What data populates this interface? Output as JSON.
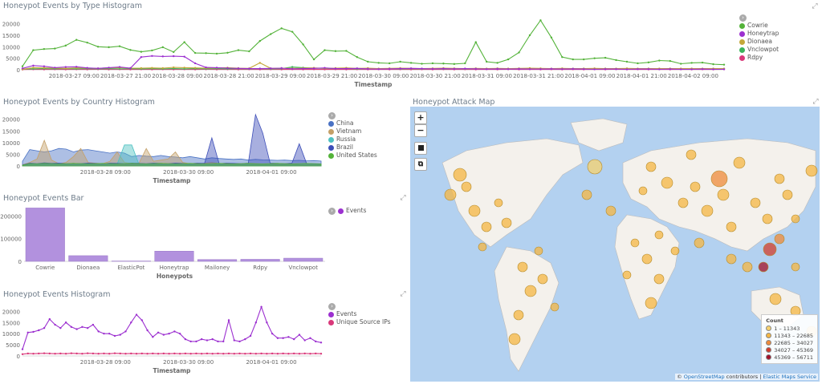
{
  "panels": {
    "type_hist": {
      "title": "Honeypot Events by Type Histogram",
      "xlabel": "Timestamp",
      "legend": [
        {
          "name": "Cowrie",
          "color": "#54b33a"
        },
        {
          "name": "Honeytrap",
          "color": "#9c30d0"
        },
        {
          "name": "Dionaea",
          "color": "#c4a83a"
        },
        {
          "name": "Vnclowpot",
          "color": "#3bb55b"
        },
        {
          "name": "Rdpy",
          "color": "#d9397a"
        }
      ]
    },
    "country_hist": {
      "title": "Honeypot Events by Country Histogram",
      "xlabel": "Timestamp",
      "legend": [
        {
          "name": "China",
          "color": "#4a72c4"
        },
        {
          "name": "Vietnam",
          "color": "#c4a068"
        },
        {
          "name": "Russia",
          "color": "#4ec2c2"
        },
        {
          "name": "Brazil",
          "color": "#3d4eb8"
        },
        {
          "name": "United States",
          "color": "#54b33a"
        }
      ]
    },
    "events_bar": {
      "title": "Honeypot Events Bar",
      "xlabel": "Honeypots",
      "legend": [
        {
          "name": "Events",
          "color": "#9c30d0"
        }
      ]
    },
    "events_hist": {
      "title": "Honeypot Events Histogram",
      "xlabel": "Timestamp",
      "legend": [
        {
          "name": "Events",
          "color": "#9c30d0"
        },
        {
          "name": "Unique Source IPs",
          "color": "#d9397a"
        }
      ]
    },
    "attack_map": {
      "title": "Honeypot Attack Map",
      "zoom_in": "+",
      "zoom_out": "−",
      "legend_title": "Count",
      "legend": [
        {
          "label": "1 – 11343",
          "color": "#f7d16e"
        },
        {
          "label": "11343 – 22685",
          "color": "#f5b643"
        },
        {
          "label": "22685 – 34027",
          "color": "#ef8a3a"
        },
        {
          "label": "34027 – 45369",
          "color": "#d23c2c"
        },
        {
          "label": "45369 – 56711",
          "color": "#a3122a"
        }
      ],
      "attribution_prefix": "© ",
      "attribution_osm": "OpenStreetMap",
      "attribution_mid": " contributors | ",
      "attribution_ems": "Elastic Maps Service"
    }
  },
  "chart_data": [
    {
      "type": "line",
      "title": "Honeypot Events by Type Histogram",
      "xlabel": "Timestamp",
      "ylabel": "",
      "y_ticks": [
        "20000",
        "15000",
        "10000",
        "5000",
        "0"
      ],
      "ylim": [
        0,
        23000
      ],
      "x_ticks": [
        "2018-03-27 09:00",
        "2018-03-27 21:00",
        "2018-03-28 09:00",
        "2018-03-28 21:00",
        "2018-03-29 09:00",
        "2018-03-29 21:00",
        "2018-03-30 09:00",
        "2018-03-30 21:00",
        "2018-03-31 09:00",
        "2018-03-31 21:00",
        "2018-04-01 09:00",
        "2018-04-01 21:00",
        "2018-04-02 09:00"
      ],
      "series": [
        {
          "name": "Cowrie",
          "values": [
            1500,
            8500,
            9000,
            9200,
            10500,
            13000,
            11800,
            10000,
            9800,
            10200,
            8600,
            7800,
            8400,
            9800,
            7700,
            12000,
            7300,
            7200,
            7000,
            7400,
            8500,
            8000,
            12500,
            15500,
            18000,
            16500,
            11000,
            4500,
            8500,
            8100,
            8200,
            5500,
            3500,
            3000,
            2800,
            3500,
            3000,
            2600,
            2800,
            2700,
            2500,
            2800,
            12000,
            3500,
            3000,
            4500,
            7500,
            15000,
            21500,
            14000,
            5500,
            4500,
            4500,
            5000,
            5200,
            4200,
            3500,
            2800,
            3200,
            4000,
            3800,
            2600,
            3000,
            3100,
            2400,
            2200
          ]
        },
        {
          "name": "Honeytrap",
          "values": [
            600,
            1800,
            1500,
            900,
            1200,
            1300,
            800,
            600,
            900,
            1200,
            700,
            5500,
            6000,
            5800,
            5900,
            5700,
            2800,
            1000,
            900,
            700,
            600,
            500,
            500,
            600,
            700,
            400,
            500,
            600,
            800,
            500,
            500,
            600,
            400,
            300,
            400,
            500,
            600,
            500,
            400,
            500,
            400,
            500,
            400,
            300,
            400,
            300,
            400,
            300,
            300,
            400,
            300,
            400,
            300,
            200,
            300,
            300,
            200,
            300,
            300,
            200,
            300,
            200,
            200,
            300,
            200,
            200
          ]
        },
        {
          "name": "Dionaea",
          "values": [
            200,
            900,
            800,
            700,
            600,
            800,
            700,
            600,
            800,
            900,
            700,
            700,
            800,
            700,
            1000,
            900,
            800,
            700,
            800,
            900,
            700,
            600,
            3000,
            600,
            700,
            600,
            700,
            800,
            600,
            700,
            800,
            600,
            700,
            500,
            600,
            700,
            600,
            500,
            600,
            700,
            600,
            500,
            600,
            500,
            600,
            500,
            600,
            700,
            600,
            500,
            600,
            500,
            500,
            600,
            500,
            500,
            600,
            500,
            500,
            500,
            500,
            500,
            500,
            500,
            500,
            500
          ]
        },
        {
          "name": "Vnclowpot",
          "values": [
            300,
            400,
            500,
            400,
            500,
            400,
            500,
            400,
            500,
            400,
            500,
            400,
            500,
            400,
            500,
            400,
            500,
            400,
            500,
            400,
            500,
            400,
            500,
            400,
            500,
            1200,
            900,
            700,
            600,
            500,
            600,
            400,
            500,
            400,
            500,
            400,
            500,
            400,
            500,
            400,
            500,
            400,
            500,
            400,
            500,
            400,
            500,
            400,
            500,
            400,
            500,
            400,
            500,
            400,
            500,
            400,
            500,
            400,
            500,
            400,
            500,
            400,
            500,
            400,
            500,
            400
          ]
        },
        {
          "name": "Rdpy",
          "values": [
            100,
            200,
            150,
            200,
            150,
            200,
            150,
            200,
            150,
            200,
            150,
            200,
            150,
            200,
            150,
            200,
            150,
            200,
            150,
            200,
            150,
            200,
            150,
            200,
            150,
            200,
            150,
            200,
            150,
            200,
            150,
            200,
            150,
            200,
            150,
            200,
            150,
            200,
            150,
            200,
            150,
            200,
            150,
            200,
            150,
            200,
            150,
            200,
            150,
            200,
            150,
            200,
            150,
            200,
            150,
            200,
            150,
            200,
            150,
            200,
            150,
            200,
            150,
            200,
            150,
            200
          ]
        }
      ]
    },
    {
      "type": "area",
      "title": "Honeypot Events by Country Histogram",
      "xlabel": "Timestamp",
      "ylabel": "",
      "y_ticks": [
        "20000",
        "15000",
        "10000",
        "5000",
        "0"
      ],
      "ylim": [
        0,
        23000
      ],
      "x_ticks": [
        "2018-03-28 09:00",
        "2018-03-30 09:00",
        "2018-04-01 09:00"
      ],
      "series": [
        {
          "name": "China",
          "values": [
            2000,
            7000,
            6500,
            6000,
            6500,
            7500,
            7200,
            6000,
            6800,
            7000,
            6500,
            6000,
            5500,
            6000,
            5500,
            4000,
            4500,
            4200,
            4000,
            4500,
            4000,
            3800,
            3500,
            4000,
            3500,
            3000,
            3500,
            3200,
            3000,
            2800,
            3000,
            2500,
            2800,
            2600,
            2500,
            2400,
            2500,
            2300,
            2400,
            2200,
            2300,
            2100
          ]
        },
        {
          "name": "Vietnam",
          "values": [
            500,
            1500,
            3000,
            11000,
            2500,
            1000,
            1500,
            4000,
            7500,
            1500,
            1200,
            1000,
            2000,
            6000,
            1500,
            1000,
            1200,
            7500,
            2000,
            2500,
            3000,
            6000,
            1500,
            1000,
            800,
            1200,
            1500,
            1000,
            800,
            700,
            900,
            1000,
            800,
            700,
            900,
            600,
            700,
            800,
            600,
            500,
            600,
            500
          ]
        },
        {
          "name": "Russia",
          "values": [
            300,
            800,
            700,
            600,
            700,
            800,
            600,
            500,
            700,
            800,
            600,
            500,
            600,
            800,
            9000,
            9000,
            600,
            500,
            700,
            600,
            500,
            600,
            500,
            600,
            500,
            400,
            500,
            600,
            500,
            400,
            500,
            600,
            500,
            400,
            500,
            400,
            500,
            400,
            500,
            400,
            500,
            400
          ]
        },
        {
          "name": "Brazil",
          "values": [
            400,
            1200,
            1000,
            1300,
            1100,
            1200,
            1000,
            1100,
            1000,
            1200,
            1100,
            1000,
            1200,
            1100,
            1000,
            1200,
            1100,
            1000,
            1200,
            1100,
            1000,
            1200,
            1100,
            1000,
            1200,
            1100,
            12000,
            1000,
            1200,
            1100,
            1000,
            1200,
            22000,
            14000,
            1200,
            1100,
            1000,
            1200,
            9500,
            1100,
            1000,
            900
          ]
        },
        {
          "name": "United States",
          "values": [
            300,
            1000,
            900,
            1100,
            1000,
            900,
            1000,
            1100,
            1000,
            900,
            1000,
            1100,
            1000,
            900,
            1000,
            1100,
            1000,
            900,
            1000,
            1100,
            1000,
            900,
            1000,
            1100,
            1000,
            900,
            1000,
            1100,
            1000,
            900,
            1000,
            1100,
            1000,
            900,
            1000,
            1100,
            1000,
            900,
            1000,
            1100,
            1000,
            900
          ]
        }
      ]
    },
    {
      "type": "bar",
      "title": "Honeypot Events Bar",
      "xlabel": "Honeypots",
      "ylabel": "",
      "y_ticks": [
        "200000",
        "100000",
        "0"
      ],
      "ylim": [
        0,
        240000
      ],
      "categories": [
        "Cowrie",
        "Dionaea",
        "ElasticPot",
        "Honeytrap",
        "Mailoney",
        "Rdpy",
        "Vnclowpot"
      ],
      "values": [
        235000,
        25000,
        1500,
        45000,
        8000,
        9000,
        14000
      ]
    },
    {
      "type": "line",
      "title": "Honeypot Events Histogram",
      "xlabel": "Timestamp",
      "ylabel": "",
      "y_ticks": [
        "20000",
        "15000",
        "10000",
        "5000",
        "0"
      ],
      "ylim": [
        0,
        23000
      ],
      "x_ticks": [
        "2018-03-28 09:00",
        "2018-03-30 09:00",
        "2018-04-01 09:00"
      ],
      "series": [
        {
          "name": "Events",
          "values": [
            3000,
            10500,
            10800,
            11500,
            12500,
            16500,
            14000,
            12500,
            15000,
            13000,
            12000,
            13000,
            12500,
            14000,
            11000,
            10000,
            10000,
            9000,
            9500,
            11000,
            15000,
            18500,
            16000,
            11500,
            8500,
            10500,
            9500,
            10000,
            11000,
            10000,
            7500,
            6500,
            6500,
            7500,
            7000,
            7500,
            6500,
            6500,
            16000,
            7000,
            6500,
            7500,
            9000,
            15000,
            22000,
            15000,
            10000,
            8000,
            8000,
            8500,
            7500,
            9500,
            7000,
            8000,
            6500,
            6000
          ]
        },
        {
          "name": "Unique Source IPs",
          "values": [
            800,
            1100,
            1000,
            1100,
            1200,
            1100,
            1000,
            1100,
            1000,
            1200,
            1100,
            1000,
            1200,
            1100,
            1000,
            1100,
            1000,
            1200,
            1100,
            1000,
            1100,
            1000,
            1100,
            1000,
            1100,
            1000,
            1100,
            1000,
            1100,
            1000,
            1100,
            1000,
            1100,
            1000,
            1100,
            1000,
            1100,
            1000,
            1100,
            1000,
            1100,
            1000,
            1100,
            1000,
            1100,
            1000,
            1100,
            1000,
            1100,
            1000,
            1100,
            1000,
            1100,
            1000,
            1100,
            1000
          ]
        }
      ]
    }
  ]
}
